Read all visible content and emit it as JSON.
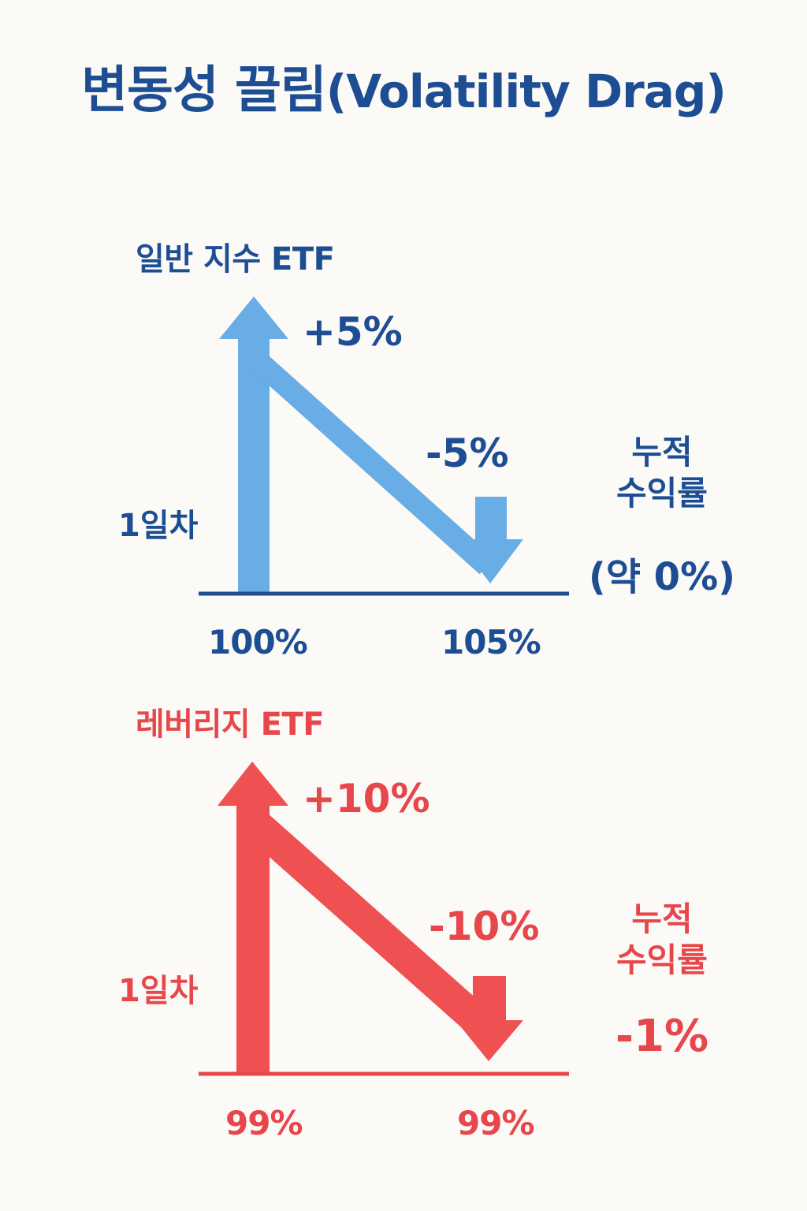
{
  "title": {
    "korean": "변동성 끌림",
    "latin": "(Volatility Drag)"
  },
  "colors": {
    "title": "#1d4d92",
    "normal_text": "#1d4d92",
    "normal_arrow": "#69ade6",
    "lever_text": "#e7464b",
    "lever_arrow": "#ef5052",
    "background": "#fbfaf7"
  },
  "normal": {
    "label": "일반 지수 ETF",
    "day_label": "1일차",
    "up_pct": "+5%",
    "down_pct": "-5%",
    "start_value": "100%",
    "end_value": "105%",
    "cumulative_label": "누적\n수익률",
    "cumulative_value": "(약 0%)"
  },
  "lever": {
    "label": "레버리지 ETF",
    "day_label": "1일차",
    "up_pct": "+10%",
    "down_pct": "-10%",
    "start_value": "99%",
    "end_value": "99%",
    "cumulative_label": "누적\n수익률",
    "cumulative_value": "-1%"
  }
}
